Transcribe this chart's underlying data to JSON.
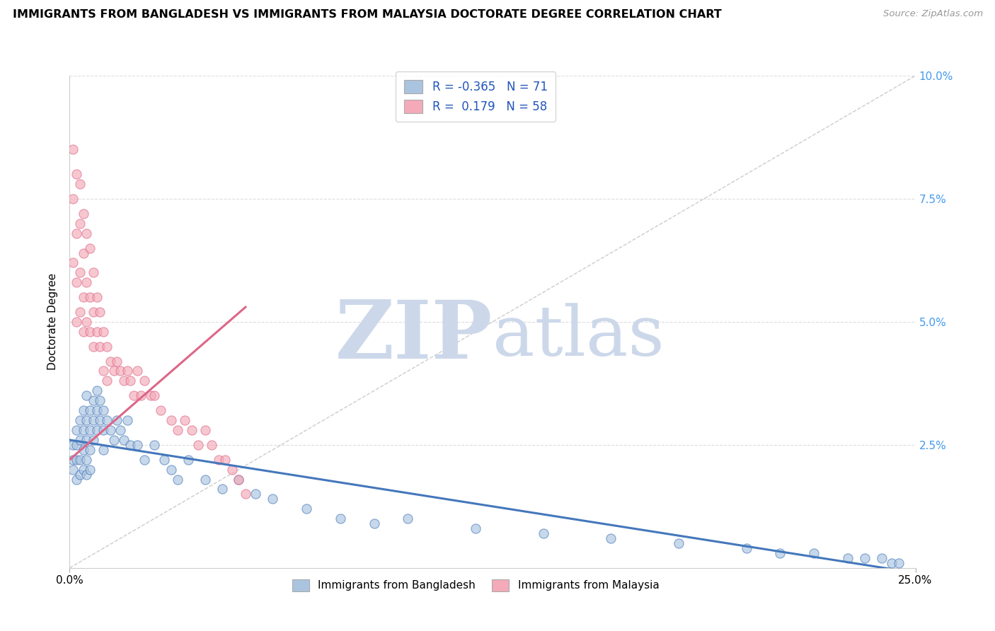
{
  "title": "IMMIGRANTS FROM BANGLADESH VS IMMIGRANTS FROM MALAYSIA DOCTORATE DEGREE CORRELATION CHART",
  "source": "Source: ZipAtlas.com",
  "ylabel": "Doctorate Degree",
  "xlim": [
    0.0,
    0.25
  ],
  "ylim": [
    0.0,
    0.1
  ],
  "legend_label1": "Immigrants from Bangladesh",
  "legend_label2": "Immigrants from Malaysia",
  "R1": -0.365,
  "N1": 71,
  "R2": 0.179,
  "N2": 58,
  "color_bangladesh": "#aac4e0",
  "color_malaysia": "#f4aab8",
  "trendline1_color": "#4477bb",
  "trendline2_color": "#dd6688",
  "diagonal_color": "#cccccc",
  "background_color": "#ffffff",
  "watermark_color": "#ccd8ea",
  "grid_color": "#dddddd",
  "ytick_color": "#4499ee",
  "bangladesh_x": [
    0.001,
    0.001,
    0.001,
    0.002,
    0.002,
    0.002,
    0.002,
    0.003,
    0.003,
    0.003,
    0.003,
    0.004,
    0.004,
    0.004,
    0.004,
    0.005,
    0.005,
    0.005,
    0.005,
    0.005,
    0.006,
    0.006,
    0.006,
    0.006,
    0.007,
    0.007,
    0.007,
    0.008,
    0.008,
    0.008,
    0.009,
    0.009,
    0.01,
    0.01,
    0.01,
    0.011,
    0.012,
    0.013,
    0.014,
    0.015,
    0.016,
    0.017,
    0.018,
    0.02,
    0.022,
    0.025,
    0.028,
    0.03,
    0.032,
    0.035,
    0.04,
    0.045,
    0.05,
    0.055,
    0.06,
    0.07,
    0.08,
    0.09,
    0.1,
    0.12,
    0.14,
    0.16,
    0.18,
    0.2,
    0.21,
    0.22,
    0.23,
    0.235,
    0.24,
    0.243,
    0.245
  ],
  "bangladesh_y": [
    0.025,
    0.022,
    0.02,
    0.028,
    0.025,
    0.022,
    0.018,
    0.03,
    0.026,
    0.022,
    0.019,
    0.032,
    0.028,
    0.024,
    0.02,
    0.035,
    0.03,
    0.026,
    0.022,
    0.019,
    0.032,
    0.028,
    0.024,
    0.02,
    0.034,
    0.03,
    0.026,
    0.036,
    0.032,
    0.028,
    0.034,
    0.03,
    0.032,
    0.028,
    0.024,
    0.03,
    0.028,
    0.026,
    0.03,
    0.028,
    0.026,
    0.03,
    0.025,
    0.025,
    0.022,
    0.025,
    0.022,
    0.02,
    0.018,
    0.022,
    0.018,
    0.016,
    0.018,
    0.015,
    0.014,
    0.012,
    0.01,
    0.009,
    0.01,
    0.008,
    0.007,
    0.006,
    0.005,
    0.004,
    0.003,
    0.003,
    0.002,
    0.002,
    0.002,
    0.001,
    0.001
  ],
  "malaysia_x": [
    0.001,
    0.001,
    0.001,
    0.002,
    0.002,
    0.002,
    0.002,
    0.003,
    0.003,
    0.003,
    0.003,
    0.004,
    0.004,
    0.004,
    0.004,
    0.005,
    0.005,
    0.005,
    0.006,
    0.006,
    0.006,
    0.007,
    0.007,
    0.007,
    0.008,
    0.008,
    0.009,
    0.009,
    0.01,
    0.01,
    0.011,
    0.011,
    0.012,
    0.013,
    0.014,
    0.015,
    0.016,
    0.017,
    0.018,
    0.019,
    0.02,
    0.021,
    0.022,
    0.024,
    0.025,
    0.027,
    0.03,
    0.032,
    0.034,
    0.036,
    0.038,
    0.04,
    0.042,
    0.044,
    0.046,
    0.048,
    0.05,
    0.052
  ],
  "malaysia_y": [
    0.085,
    0.075,
    0.062,
    0.08,
    0.068,
    0.058,
    0.05,
    0.078,
    0.07,
    0.06,
    0.052,
    0.072,
    0.064,
    0.055,
    0.048,
    0.068,
    0.058,
    0.05,
    0.065,
    0.055,
    0.048,
    0.06,
    0.052,
    0.045,
    0.055,
    0.048,
    0.052,
    0.045,
    0.048,
    0.04,
    0.045,
    0.038,
    0.042,
    0.04,
    0.042,
    0.04,
    0.038,
    0.04,
    0.038,
    0.035,
    0.04,
    0.035,
    0.038,
    0.035,
    0.035,
    0.032,
    0.03,
    0.028,
    0.03,
    0.028,
    0.025,
    0.028,
    0.025,
    0.022,
    0.022,
    0.02,
    0.018,
    0.015
  ],
  "trendline1_x0": 0.0,
  "trendline1_x1": 0.25,
  "trendline1_y0": 0.026,
  "trendline1_y1": -0.001,
  "trendline2_x0": 0.0,
  "trendline2_x1": 0.052,
  "trendline2_y0": 0.022,
  "trendline2_y1": 0.053
}
